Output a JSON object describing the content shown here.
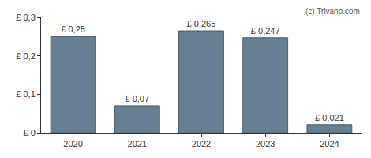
{
  "chart_data": {
    "type": "bar",
    "categories": [
      "2020",
      "2021",
      "2022",
      "2023",
      "2024"
    ],
    "values": [
      0.25,
      0.07,
      0.265,
      0.247,
      0.021
    ],
    "value_labels": [
      "£ 0,25",
      "£ 0,07",
      "£ 0,265",
      "£ 0,247",
      "£ 0,021"
    ],
    "data_labels": true,
    "color": "#667f93",
    "ylim": [
      0,
      0.3
    ],
    "yticks": [
      {
        "value": 0,
        "label": "£ 0"
      },
      {
        "value": 0.1,
        "label": "£ 0,1"
      },
      {
        "value": 0.2,
        "label": "£ 0,2"
      },
      {
        "value": 0.3,
        "label": "£ 0,3"
      }
    ],
    "grid": false,
    "annotations": [
      "(c) Trivano.com"
    ]
  }
}
